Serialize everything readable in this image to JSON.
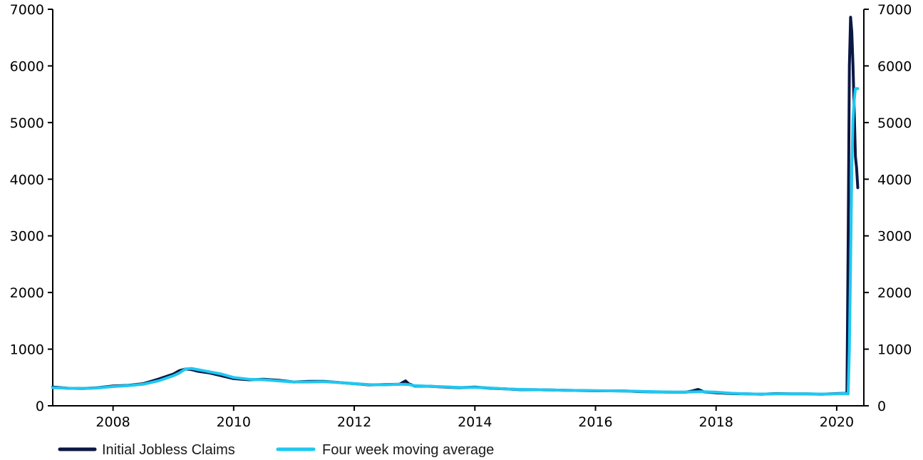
{
  "chart_data": {
    "type": "line",
    "title": "",
    "xlabel": "",
    "ylabel": "",
    "x_range": [
      2007.0,
      2020.45
    ],
    "ylim": [
      0,
      7000
    ],
    "x_ticks": [
      2008,
      2010,
      2012,
      2014,
      2016,
      2018,
      2020
    ],
    "x_tick_labels": [
      "2008",
      "2010",
      "2012",
      "2014",
      "2016",
      "2018",
      "2020"
    ],
    "y_ticks": [
      0,
      1000,
      2000,
      3000,
      4000,
      5000,
      6000,
      7000
    ],
    "y_tick_labels": [
      "0",
      "1000",
      "2000",
      "3000",
      "4000",
      "5000",
      "6000",
      "7000"
    ],
    "secondary_y_axis": true,
    "grid": false,
    "legend": {
      "placement": "bottom-left"
    },
    "series": [
      {
        "name": "Initial Jobless Claims",
        "color": "#0b1744",
        "x": [
          2007.0,
          2007.25,
          2007.5,
          2007.75,
          2008.0,
          2008.25,
          2008.5,
          2008.75,
          2009.0,
          2009.1,
          2009.2,
          2009.3,
          2009.4,
          2009.6,
          2009.8,
          2010.0,
          2010.25,
          2010.5,
          2010.75,
          2011.0,
          2011.25,
          2011.5,
          2011.75,
          2012.0,
          2012.25,
          2012.5,
          2012.75,
          2012.85,
          2012.9,
          2013.0,
          2013.25,
          2013.5,
          2013.75,
          2014.0,
          2014.25,
          2014.5,
          2014.75,
          2015.0,
          2015.25,
          2015.5,
          2015.75,
          2016.0,
          2016.25,
          2016.5,
          2016.75,
          2017.0,
          2017.25,
          2017.5,
          2017.6,
          2017.7,
          2017.8,
          2018.0,
          2018.25,
          2018.5,
          2018.75,
          2019.0,
          2019.25,
          2019.5,
          2019.75,
          2020.0,
          2020.17,
          2020.19,
          2020.21,
          2020.23,
          2020.25,
          2020.27,
          2020.29,
          2020.31,
          2020.33,
          2020.35
        ],
        "y": [
          330,
          310,
          305,
          320,
          350,
          360,
          390,
          470,
          560,
          620,
          650,
          640,
          610,
          580,
          530,
          480,
          460,
          470,
          450,
          420,
          430,
          430,
          410,
          390,
          370,
          375,
          380,
          440,
          390,
          350,
          345,
          330,
          320,
          330,
          310,
          300,
          285,
          285,
          280,
          275,
          270,
          265,
          265,
          260,
          250,
          245,
          240,
          240,
          260,
          290,
          245,
          230,
          215,
          210,
          205,
          215,
          210,
          210,
          205,
          215,
          220,
          2900,
          6000,
          6860,
          6600,
          6000,
          5200,
          4400,
          4200,
          3850
        ]
      },
      {
        "name": "Four week moving average",
        "color": "#1ec8f2",
        "x": [
          2007.0,
          2007.25,
          2007.5,
          2007.75,
          2008.0,
          2008.25,
          2008.5,
          2008.75,
          2009.0,
          2009.1,
          2009.2,
          2009.3,
          2009.4,
          2009.6,
          2009.8,
          2010.0,
          2010.25,
          2010.5,
          2010.75,
          2011.0,
          2011.25,
          2011.5,
          2011.75,
          2012.0,
          2012.25,
          2012.5,
          2012.75,
          2012.9,
          2013.0,
          2013.25,
          2013.5,
          2013.75,
          2014.0,
          2014.25,
          2014.5,
          2014.75,
          2015.0,
          2015.25,
          2015.5,
          2015.75,
          2016.0,
          2016.25,
          2016.5,
          2016.75,
          2017.0,
          2017.25,
          2017.5,
          2017.75,
          2018.0,
          2018.25,
          2018.5,
          2018.75,
          2019.0,
          2019.25,
          2019.5,
          2019.75,
          2020.0,
          2020.17,
          2020.19,
          2020.21,
          2020.23,
          2020.25,
          2020.27,
          2020.29,
          2020.31,
          2020.33,
          2020.35
        ],
        "y": [
          320,
          310,
          305,
          315,
          340,
          355,
          380,
          440,
          530,
          580,
          650,
          660,
          640,
          600,
          560,
          500,
          470,
          460,
          440,
          420,
          420,
          425,
          410,
          390,
          375,
          370,
          380,
          375,
          355,
          345,
          335,
          325,
          325,
          315,
          300,
          290,
          285,
          280,
          275,
          270,
          268,
          265,
          262,
          255,
          248,
          243,
          242,
          250,
          240,
          222,
          212,
          207,
          210,
          212,
          210,
          208,
          212,
          215,
          210,
          1000,
          2500,
          4200,
          5050,
          5400,
          5600,
          5600,
          5600
        ]
      }
    ]
  }
}
